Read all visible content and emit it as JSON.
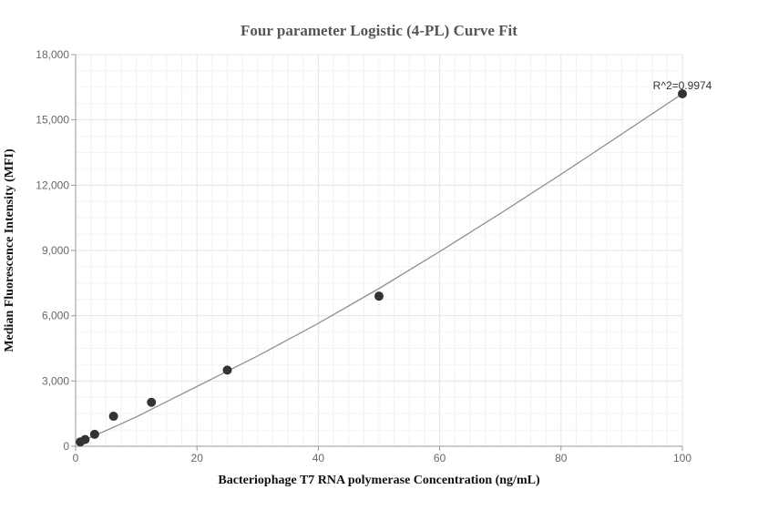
{
  "chart_data": {
    "type": "scatter",
    "title": "Four parameter Logistic (4-PL) Curve Fit",
    "xlabel": "Bacteriophage T7 RNA polymerase Concentration (ng/mL)",
    "ylabel": "Median Fluorescence Intensity (MFI)",
    "xlim": [
      0,
      100
    ],
    "ylim": [
      0,
      18000
    ],
    "x_ticks": [
      0,
      20,
      40,
      60,
      80,
      100
    ],
    "x_tick_labels": [
      "0",
      "20",
      "40",
      "60",
      "80",
      "100"
    ],
    "y_ticks": [
      0,
      3000,
      6000,
      9000,
      12000,
      15000,
      18000
    ],
    "y_tick_labels": [
      "0",
      "3,000",
      "6,000",
      "9,000",
      "12,000",
      "15,000",
      "18,000"
    ],
    "grid": true,
    "points": [
      {
        "x": 0.78,
        "y": 200
      },
      {
        "x": 1.56,
        "y": 310
      },
      {
        "x": 3.13,
        "y": 550
      },
      {
        "x": 6.25,
        "y": 1380
      },
      {
        "x": 12.5,
        "y": 2020
      },
      {
        "x": 25,
        "y": 3500
      },
      {
        "x": 50,
        "y": 6900
      },
      {
        "x": 100,
        "y": 16200
      }
    ],
    "fit_curve": {
      "x": [
        0.78,
        2,
        5,
        10,
        15,
        20,
        25,
        30,
        40,
        50,
        60,
        70,
        80,
        90,
        100
      ],
      "y": [
        200,
        350,
        720,
        1350,
        2050,
        2750,
        3450,
        4150,
        5650,
        7250,
        8950,
        10700,
        12500,
        14350,
        16200
      ]
    },
    "annotation": "R^2=0.9974",
    "colors": {
      "point": "#333333",
      "curve": "#888888",
      "grid": "#e6e6e6",
      "axis": "#999999"
    }
  }
}
